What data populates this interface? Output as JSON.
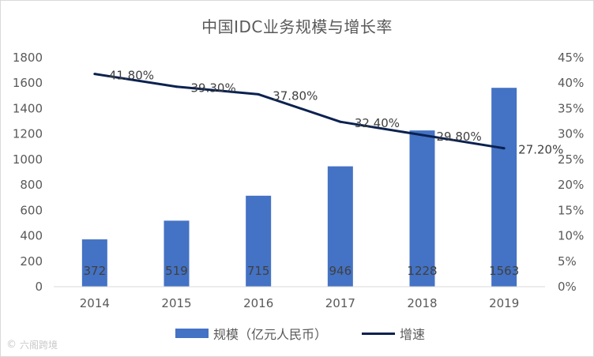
{
  "chart_data": {
    "type": "bar",
    "title": "中国IDC业务规模与增长率",
    "categories": [
      "2014",
      "2015",
      "2016",
      "2017",
      "2018",
      "2019"
    ],
    "series": [
      {
        "name": "规模（亿元人民币）",
        "type": "bar",
        "axis": "left",
        "color": "#4472c4",
        "values": [
          372,
          519,
          715,
          946,
          1228,
          1563
        ],
        "labels": [
          "372",
          "519",
          "715",
          "946",
          "1228",
          "1563"
        ]
      },
      {
        "name": "增速",
        "type": "line",
        "axis": "right",
        "color": "#0b2150",
        "values": [
          41.8,
          39.3,
          37.8,
          32.4,
          29.8,
          27.2
        ],
        "labels": [
          "41.80%",
          "39.30%",
          "37.80%",
          "32.40%",
          "29.80%",
          "27.20%"
        ]
      }
    ],
    "y_left": {
      "min": 0,
      "max": 1800,
      "ticks": [
        "0",
        "200",
        "400",
        "600",
        "800",
        "1000",
        "1200",
        "1400",
        "1600",
        "1800"
      ]
    },
    "y_right": {
      "min": 0,
      "max": 45,
      "ticks": [
        "0%",
        "5%",
        "10%",
        "15%",
        "20%",
        "25%",
        "30%",
        "35%",
        "40%",
        "45%"
      ]
    },
    "legend_position": "bottom",
    "grid": false
  },
  "watermark": {
    "text": "六阁跨境"
  }
}
